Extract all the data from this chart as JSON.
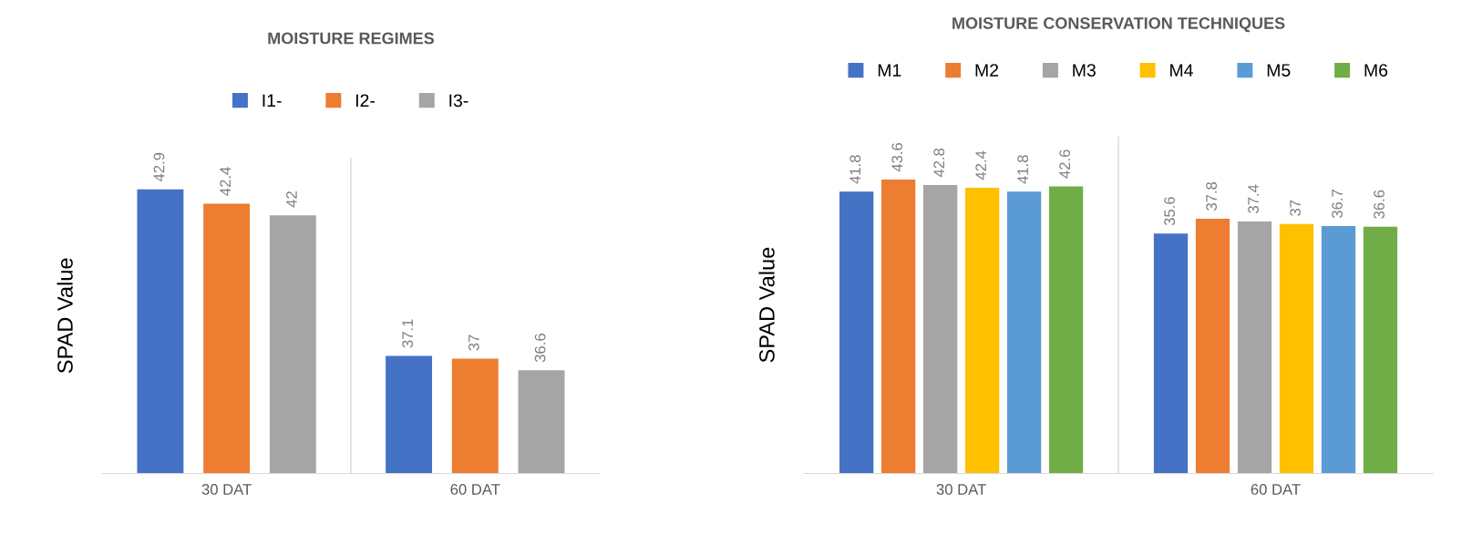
{
  "chart_data": [
    {
      "type": "bar",
      "title": "MOISTURE REGIMES",
      "ylabel": "SPAD Value",
      "categories": [
        "30 DAT",
        "60 DAT"
      ],
      "ylim": [
        33,
        44
      ],
      "tick_labels": "x",
      "data_labels": true,
      "legend": "top",
      "grid": false,
      "series": [
        {
          "name": "I1-",
          "color": "#4472c4",
          "values": [
            42.9,
            37.1
          ]
        },
        {
          "name": "I2-",
          "color": "#ed7d31",
          "values": [
            42.4,
            37
          ]
        },
        {
          "name": "I3-",
          "color": "#a5a5a5",
          "values": [
            42,
            36.6
          ]
        }
      ]
    },
    {
      "type": "bar",
      "title": "MOISTURE CONSERVATION TECHNIQUES",
      "ylabel": "SPAD Value",
      "categories": [
        "30 DAT",
        "60 DAT"
      ],
      "ylim": [
        0,
        50
      ],
      "tick_labels": "x",
      "data_labels": true,
      "legend": "top",
      "grid": false,
      "series": [
        {
          "name": "M1",
          "color": "#4472c4",
          "values": [
            41.8,
            35.6
          ]
        },
        {
          "name": "M2",
          "color": "#ed7d31",
          "values": [
            43.6,
            37.8
          ]
        },
        {
          "name": "M3",
          "color": "#a5a5a5",
          "values": [
            42.8,
            37.4
          ]
        },
        {
          "name": "M4",
          "color": "#ffc000",
          "values": [
            42.4,
            37
          ]
        },
        {
          "name": "M5",
          "color": "#5b9bd5",
          "values": [
            41.8,
            36.7
          ]
        },
        {
          "name": "M6",
          "color": "#70ad47",
          "values": [
            42.6,
            36.6
          ]
        }
      ]
    }
  ]
}
